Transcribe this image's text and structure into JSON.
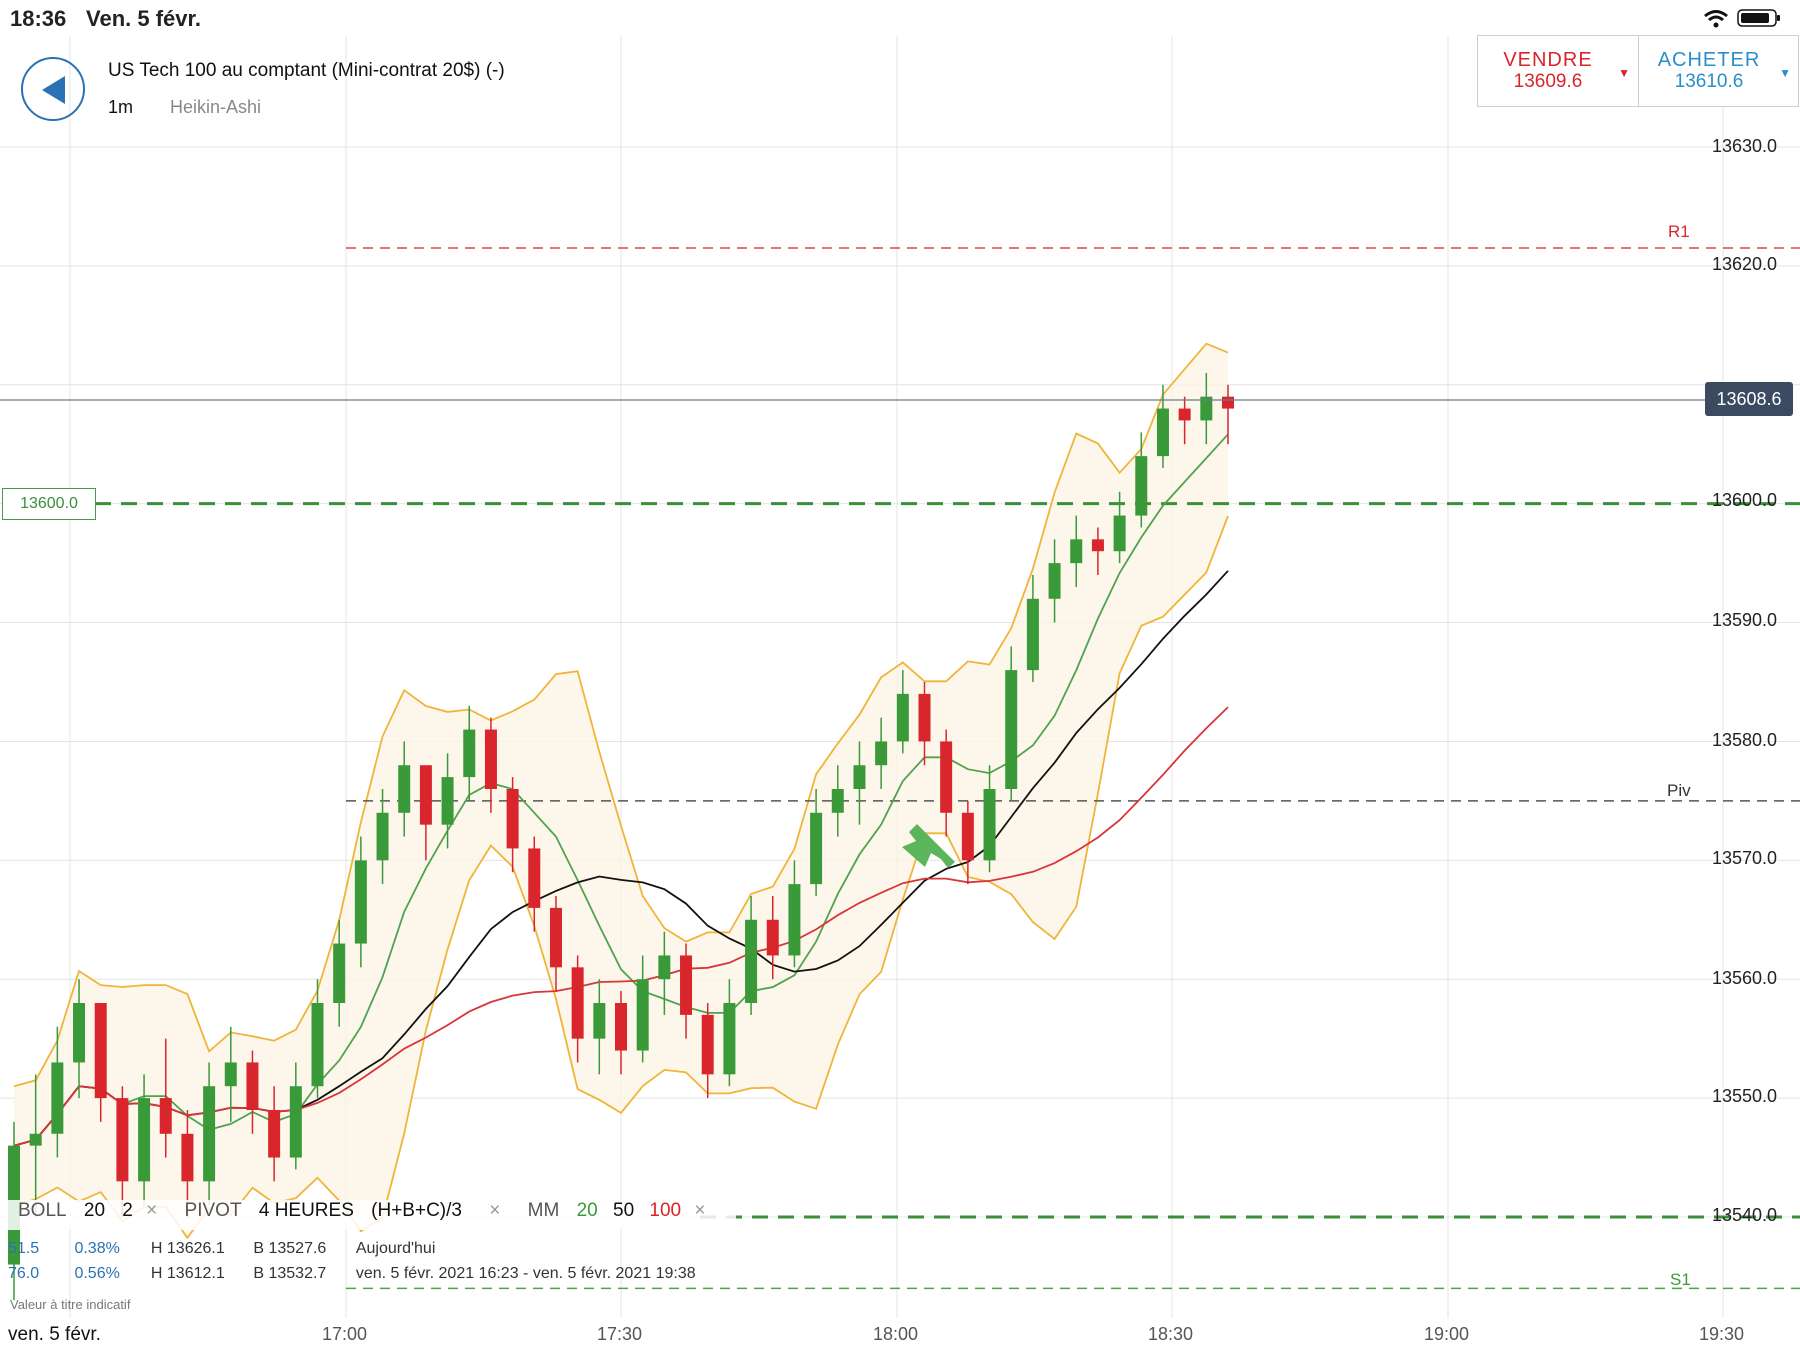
{
  "status_bar": {
    "time": "18:36",
    "date": "Ven. 5 févr."
  },
  "header": {
    "instrument": "US Tech 100 au comptant (Mini-contrat 20$) (-)",
    "timeframe": "1m",
    "chart_style": "Heikin-Ashi"
  },
  "trade": {
    "sell_label": "VENDRE",
    "sell_price": "13609.6",
    "buy_label": "ACHETER",
    "buy_price": "13610.6"
  },
  "price_axis": {
    "ticks": [
      "13630.0",
      "13620.0",
      "13600.0",
      "13590.0",
      "13580.0",
      "13570.0",
      "13560.0",
      "13550.0",
      "13540.0"
    ],
    "current_price": "13608.6"
  },
  "time_axis": {
    "date_label": "ven. 5 févr.",
    "ticks": [
      "17:00",
      "17:30",
      "18:00",
      "18:30",
      "19:00",
      "19:30"
    ]
  },
  "levels": {
    "r1": "R1",
    "piv": "Piv",
    "s1": "S1",
    "order_level": "13600.0"
  },
  "indicators": {
    "boll_name": "BOLL",
    "boll_p1": "20",
    "boll_p2": "2",
    "pivot_name": "PIVOT",
    "pivot_period": "4 HEURES",
    "pivot_formula": "(H+B+C)/3",
    "mm_name": "MM",
    "mm_20": "20",
    "mm_50": "50",
    "mm_100": "100",
    "close_glyph": "×"
  },
  "info": {
    "row1_a": "51.5",
    "row1_pct": "0.38%",
    "row1_h": "H 13626.1",
    "row1_b": "B 13527.6",
    "row1_period": "Aujourd'hui",
    "row2_a": "76.0",
    "row2_pct": "0.56%",
    "row2_h": "H 13612.1",
    "row2_b": "B 13532.7",
    "row2_period": "ven. 5 févr. 2021 16:23 - ven. 5 févr. 2021 19:38",
    "disclaimer": "Valeur à titre indicatif"
  },
  "colors": {
    "up_candle": "#3a9a3a",
    "down_candle": "#d8262c",
    "bollinger": "#f0b43a",
    "mm20": "#4fa34f",
    "mm50": "#111111",
    "mm100": "#d8353a",
    "arrow": "#5bb55b"
  },
  "chart_data": {
    "type": "candlestick",
    "interval": "1m",
    "y_range": [
      13532,
      13634
    ],
    "pivot_levels": {
      "R1": 13621.5,
      "Piv": 13575,
      "S1": 13534
    },
    "order_level": 13600.0,
    "last_price": 13608.6,
    "candles_ohlc_approx": [
      [
        13536,
        13548,
        13533,
        13546
      ],
      [
        13546,
        13552,
        13540,
        13547
      ],
      [
        13547,
        13556,
        13545,
        13553
      ],
      [
        13553,
        13560,
        13550,
        13558
      ],
      [
        13558,
        13557,
        13548,
        13550
      ],
      [
        13550,
        13551,
        13540,
        13543
      ],
      [
        13543,
        13552,
        13541,
        13550
      ],
      [
        13550,
        13555,
        13545,
        13547
      ],
      [
        13547,
        13549,
        13540,
        13543
      ],
      [
        13543,
        13553,
        13541,
        13551
      ],
      [
        13551,
        13556,
        13548,
        13553
      ],
      [
        13553,
        13554,
        13547,
        13549
      ],
      [
        13549,
        13551,
        13543,
        13545
      ],
      [
        13545,
        13553,
        13544,
        13551
      ],
      [
        13551,
        13560,
        13550,
        13558
      ],
      [
        13558,
        13565,
        13556,
        13563
      ],
      [
        13563,
        13572,
        13561,
        13570
      ],
      [
        13570,
        13576,
        13568,
        13574
      ],
      [
        13574,
        13580,
        13572,
        13578
      ],
      [
        13578,
        13577,
        13570,
        13573
      ],
      [
        13573,
        13579,
        13571,
        13577
      ],
      [
        13577,
        13583,
        13575,
        13581
      ],
      [
        13581,
        13582,
        13574,
        13576
      ],
      [
        13576,
        13577,
        13569,
        13571
      ],
      [
        13571,
        13572,
        13564,
        13566
      ],
      [
        13566,
        13567,
        13559,
        13561
      ],
      [
        13561,
        13562,
        13553,
        13555
      ],
      [
        13555,
        13560,
        13552,
        13558
      ],
      [
        13558,
        13559,
        13552,
        13554
      ],
      [
        13554,
        13562,
        13553,
        13560
      ],
      [
        13560,
        13564,
        13557,
        13562
      ],
      [
        13562,
        13563,
        13555,
        13557
      ],
      [
        13557,
        13558,
        13550,
        13552
      ],
      [
        13552,
        13560,
        13551,
        13558
      ],
      [
        13558,
        13567,
        13557,
        13565
      ],
      [
        13565,
        13567,
        13560,
        13562
      ],
      [
        13562,
        13570,
        13561,
        13568
      ],
      [
        13568,
        13576,
        13567,
        13574
      ],
      [
        13574,
        13578,
        13572,
        13576
      ],
      [
        13576,
        13580,
        13573,
        13578
      ],
      [
        13578,
        13582,
        13576,
        13580
      ],
      [
        13580,
        13586,
        13579,
        13584
      ],
      [
        13584,
        13585,
        13578,
        13580
      ],
      [
        13580,
        13581,
        13572,
        13574
      ],
      [
        13574,
        13575,
        13568,
        13570
      ],
      [
        13570,
        13578,
        13569,
        13576
      ],
      [
        13576,
        13588,
        13575,
        13586
      ],
      [
        13586,
        13594,
        13585,
        13592
      ],
      [
        13592,
        13597,
        13590,
        13595
      ],
      [
        13595,
        13599,
        13593,
        13597
      ],
      [
        13597,
        13598,
        13594,
        13596
      ],
      [
        13596,
        13601,
        13595,
        13599
      ],
      [
        13599,
        13606,
        13598,
        13604
      ],
      [
        13604,
        13610,
        13603,
        13608
      ],
      [
        13608,
        13609,
        13605,
        13607
      ],
      [
        13607,
        13611,
        13605,
        13609
      ],
      [
        13609,
        13610,
        13605,
        13608
      ]
    ]
  }
}
